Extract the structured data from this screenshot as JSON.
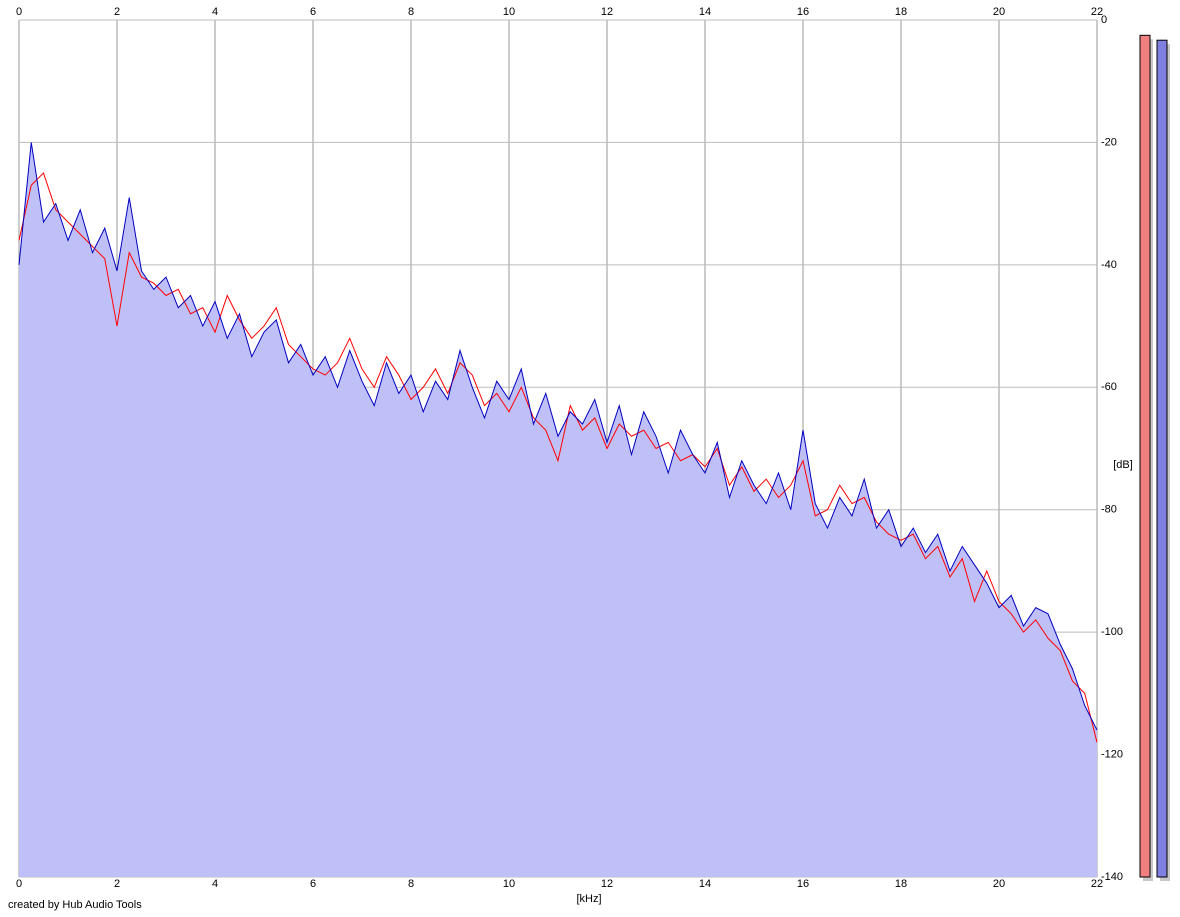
{
  "chart_data": {
    "type": "spectrum",
    "x_label": "[kHz]",
    "y_label": "[dB]",
    "footer": "created by Hub Audio Tools",
    "xlim": [
      0,
      22
    ],
    "ylim": [
      -140,
      0
    ],
    "xticks": [
      0,
      2,
      4,
      6,
      8,
      10,
      12,
      14,
      16,
      18,
      20,
      22
    ],
    "yticks": [
      0,
      -20,
      -40,
      -60,
      -80,
      -100,
      -120,
      -140
    ],
    "grid": true,
    "fill_color": "#c0c0f8",
    "x": [
      0,
      0.25,
      0.5,
      0.75,
      1,
      1.25,
      1.5,
      1.75,
      2,
      2.25,
      2.5,
      2.75,
      3,
      3.25,
      3.5,
      3.75,
      4,
      4.25,
      4.5,
      4.75,
      5,
      5.25,
      5.5,
      5.75,
      6,
      6.25,
      6.5,
      6.75,
      7,
      7.25,
      7.5,
      7.75,
      8,
      8.25,
      8.5,
      8.75,
      9,
      9.25,
      9.5,
      9.75,
      10,
      10.25,
      10.5,
      10.75,
      11,
      11.25,
      11.5,
      11.75,
      12,
      12.25,
      12.5,
      12.75,
      13,
      13.25,
      13.5,
      13.75,
      14,
      14.25,
      14.5,
      14.75,
      15,
      15.25,
      15.5,
      15.75,
      16,
      16.25,
      16.5,
      16.75,
      17,
      17.25,
      17.5,
      17.75,
      18,
      18.25,
      18.5,
      18.75,
      19,
      19.25,
      19.5,
      19.75,
      20,
      20.25,
      20.5,
      20.75,
      21,
      21.25,
      21.5,
      21.75,
      22
    ],
    "series": [
      {
        "color": "#ff0000",
        "values": [
          -36,
          -27,
          -25,
          -31,
          -33,
          -35,
          -37,
          -39,
          -50,
          -38,
          -42,
          -43,
          -45,
          -44,
          -48,
          -47,
          -51,
          -45,
          -49,
          -52,
          -50,
          -47,
          -53,
          -55,
          -57,
          -58,
          -56,
          -52,
          -57,
          -60,
          -55,
          -58,
          -62,
          -60,
          -57,
          -61,
          -56,
          -58,
          -63,
          -61,
          -64,
          -60,
          -65,
          -67,
          -72,
          -63,
          -67,
          -65,
          -70,
          -66,
          -68,
          -67,
          -70,
          -69,
          -72,
          -71,
          -73,
          -70,
          -76,
          -73,
          -77,
          -75,
          -78,
          -76,
          -72,
          -81,
          -80,
          -76,
          -79,
          -78,
          -82,
          -84,
          -85,
          -84,
          -88,
          -86,
          -91,
          -88,
          -95,
          -90,
          -95,
          -97,
          -100,
          -98,
          -101,
          -103,
          -108,
          -110,
          -118
        ]
      },
      {
        "color": "#0000c0",
        "fill": true,
        "values": [
          -40,
          -20,
          -33,
          -30,
          -36,
          -31,
          -38,
          -34,
          -41,
          -29,
          -41,
          -44,
          -42,
          -47,
          -45,
          -50,
          -46,
          -52,
          -48,
          -55,
          -51,
          -49,
          -56,
          -53,
          -58,
          -55,
          -60,
          -54,
          -59,
          -63,
          -56,
          -61,
          -58,
          -64,
          -59,
          -62,
          -54,
          -60,
          -65,
          -59,
          -62,
          -57,
          -66,
          -61,
          -68,
          -64,
          -66,
          -62,
          -69,
          -63,
          -71,
          -64,
          -68,
          -74,
          -67,
          -71,
          -74,
          -69,
          -78,
          -72,
          -76,
          -79,
          -74,
          -80,
          -67,
          -79,
          -83,
          -78,
          -81,
          -75,
          -83,
          -80,
          -86,
          -83,
          -87,
          -84,
          -90,
          -86,
          -89,
          -92,
          -96,
          -94,
          -99,
          -96,
          -97,
          -102,
          -106,
          -112,
          -116
        ]
      }
    ],
    "meters": [
      {
        "color": "#f08080",
        "value": -2.5
      },
      {
        "color": "#8080e0",
        "value": -3.3
      }
    ]
  }
}
